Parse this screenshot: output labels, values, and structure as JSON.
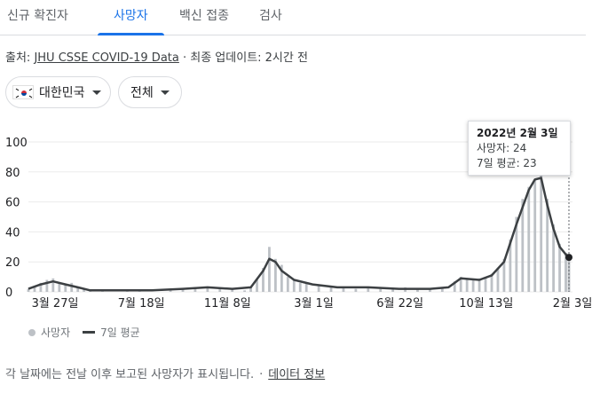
{
  "tabs": [
    {
      "label": "신규 확진자",
      "active": false
    },
    {
      "label": "사망자",
      "active": true
    },
    {
      "label": "백신 접종",
      "active": false
    },
    {
      "label": "검사",
      "active": false
    }
  ],
  "source": {
    "prefix": "출처: ",
    "link": "JHU CSSE COVID-19 Data",
    "updated": " · 최종 업데이트: 2시간 전"
  },
  "filters": {
    "country": {
      "label": "대한민국",
      "icon": "south-korea-flag-icon"
    },
    "range": {
      "label": "전체"
    }
  },
  "tooltip": {
    "date": "2022년 2월 3일",
    "deaths_line": "사망자: 24",
    "avg_line": "7일 평균: 23"
  },
  "legend": {
    "daily": "사망자",
    "avg": "7일 평균"
  },
  "footnote": {
    "text": "각 날짜에는 전날 이후 보고된 사망자가 표시됩니다.",
    "separator": "·",
    "link": "데이터 정보"
  },
  "colors": {
    "accent": "#1a73e8",
    "bars": "#bdc1c6",
    "line": "#3c4043",
    "gridline": "#ebebeb"
  },
  "chart_data": {
    "type": "bar",
    "x_tick_labels": [
      "3월 27일",
      "7월 18일",
      "11월 8일",
      "3월 1일",
      "6월 22일",
      "10월 13일",
      "2월 3일"
    ],
    "ylim": [
      0,
      100
    ],
    "y_ticks": [
      0,
      20,
      40,
      60,
      80,
      100
    ],
    "series": [
      {
        "name": "사망자",
        "style": "bars",
        "points": [
          [
            0,
            2
          ],
          [
            2,
            4
          ],
          [
            4,
            6
          ],
          [
            6,
            8
          ],
          [
            8,
            9
          ],
          [
            10,
            6
          ],
          [
            12,
            5
          ],
          [
            14,
            6
          ],
          [
            16,
            3
          ],
          [
            18,
            2
          ],
          [
            20,
            1
          ],
          [
            24,
            1
          ],
          [
            28,
            0
          ],
          [
            32,
            1
          ],
          [
            36,
            1
          ],
          [
            40,
            0
          ],
          [
            46,
            1
          ],
          [
            50,
            2
          ],
          [
            54,
            3
          ],
          [
            58,
            3
          ],
          [
            62,
            2
          ],
          [
            66,
            2
          ],
          [
            70,
            1
          ],
          [
            72,
            3
          ],
          [
            74,
            8
          ],
          [
            76,
            16
          ],
          [
            78,
            30
          ],
          [
            80,
            22
          ],
          [
            82,
            18
          ],
          [
            84,
            10
          ],
          [
            86,
            8
          ],
          [
            88,
            6
          ],
          [
            90,
            6
          ],
          [
            94,
            4
          ],
          [
            98,
            3
          ],
          [
            102,
            3
          ],
          [
            106,
            2
          ],
          [
            110,
            3
          ],
          [
            114,
            2
          ],
          [
            118,
            2
          ],
          [
            122,
            3
          ],
          [
            126,
            2
          ],
          [
            130,
            2
          ],
          [
            134,
            3
          ],
          [
            138,
            7
          ],
          [
            140,
            10
          ],
          [
            142,
            9
          ],
          [
            144,
            8
          ],
          [
            146,
            9
          ],
          [
            148,
            10
          ],
          [
            150,
            12
          ],
          [
            152,
            16
          ],
          [
            154,
            22
          ],
          [
            156,
            35
          ],
          [
            158,
            50
          ],
          [
            160,
            62
          ],
          [
            162,
            70
          ],
          [
            164,
            75
          ],
          [
            166,
            78
          ],
          [
            168,
            62
          ],
          [
            170,
            45
          ],
          [
            172,
            32
          ],
          [
            174,
            26
          ],
          [
            175,
            24
          ]
        ]
      },
      {
        "name": "7일 평균",
        "style": "line",
        "points": [
          [
            0,
            2
          ],
          [
            4,
            5
          ],
          [
            8,
            7
          ],
          [
            12,
            5
          ],
          [
            16,
            3
          ],
          [
            20,
            1
          ],
          [
            28,
            1
          ],
          [
            40,
            1
          ],
          [
            50,
            2
          ],
          [
            58,
            3
          ],
          [
            66,
            2
          ],
          [
            72,
            3
          ],
          [
            76,
            14
          ],
          [
            78,
            22
          ],
          [
            80,
            20
          ],
          [
            82,
            14
          ],
          [
            86,
            8
          ],
          [
            92,
            5
          ],
          [
            100,
            3
          ],
          [
            110,
            3
          ],
          [
            120,
            2
          ],
          [
            130,
            2
          ],
          [
            136,
            3
          ],
          [
            140,
            9
          ],
          [
            146,
            8
          ],
          [
            150,
            11
          ],
          [
            154,
            20
          ],
          [
            158,
            45
          ],
          [
            162,
            68
          ],
          [
            164,
            75
          ],
          [
            166,
            76
          ],
          [
            168,
            58
          ],
          [
            170,
            42
          ],
          [
            172,
            30
          ],
          [
            174,
            25
          ],
          [
            175,
            23
          ]
        ]
      }
    ]
  }
}
